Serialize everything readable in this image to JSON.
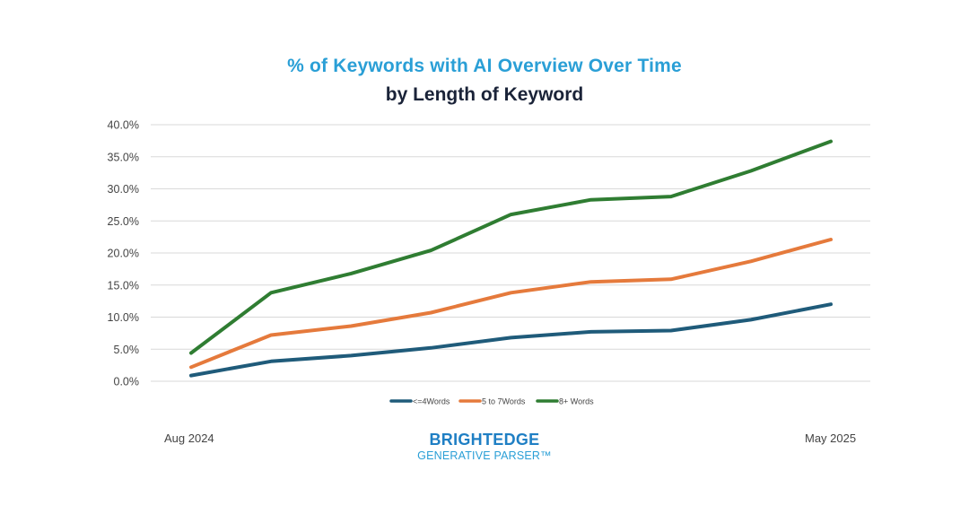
{
  "chart_data": {
    "type": "line",
    "title": "% of Keywords with AI Overview Over Time",
    "subtitle": "by Length of Keyword",
    "y_ticks": [
      "40.0%",
      "35.0%",
      "30.0%",
      "25.0%",
      "20.0%",
      "15.0%",
      "10.0%",
      "5.0%",
      "0.0%"
    ],
    "ylim": [
      0,
      40
    ],
    "grid": true,
    "x": [
      "Aug 2024",
      "",
      "",
      "",
      "",
      "",
      "",
      "",
      "May 2025"
    ],
    "x_labels": {
      "start": "Aug 2024",
      "end": "May 2025"
    },
    "legend_position": "bottom",
    "series": [
      {
        "name": "<=4Words",
        "color": "#1f5b7a",
        "values": [
          0.9,
          3.1,
          4.0,
          5.2,
          6.8,
          7.7,
          7.9,
          9.6,
          12.0
        ]
      },
      {
        "name": "5 to 7Words",
        "color": "#e57a3c",
        "values": [
          2.2,
          7.2,
          8.6,
          10.7,
          13.8,
          15.5,
          15.9,
          18.7,
          22.1
        ]
      },
      {
        "name": "8+ Words",
        "color": "#2f7d32",
        "values": [
          4.4,
          13.8,
          16.8,
          20.4,
          26.0,
          28.3,
          28.8,
          32.8,
          37.4
        ]
      }
    ]
  },
  "brand": {
    "name": "BRIGHTEDGE",
    "product": "GENERATIVE PARSER™"
  }
}
